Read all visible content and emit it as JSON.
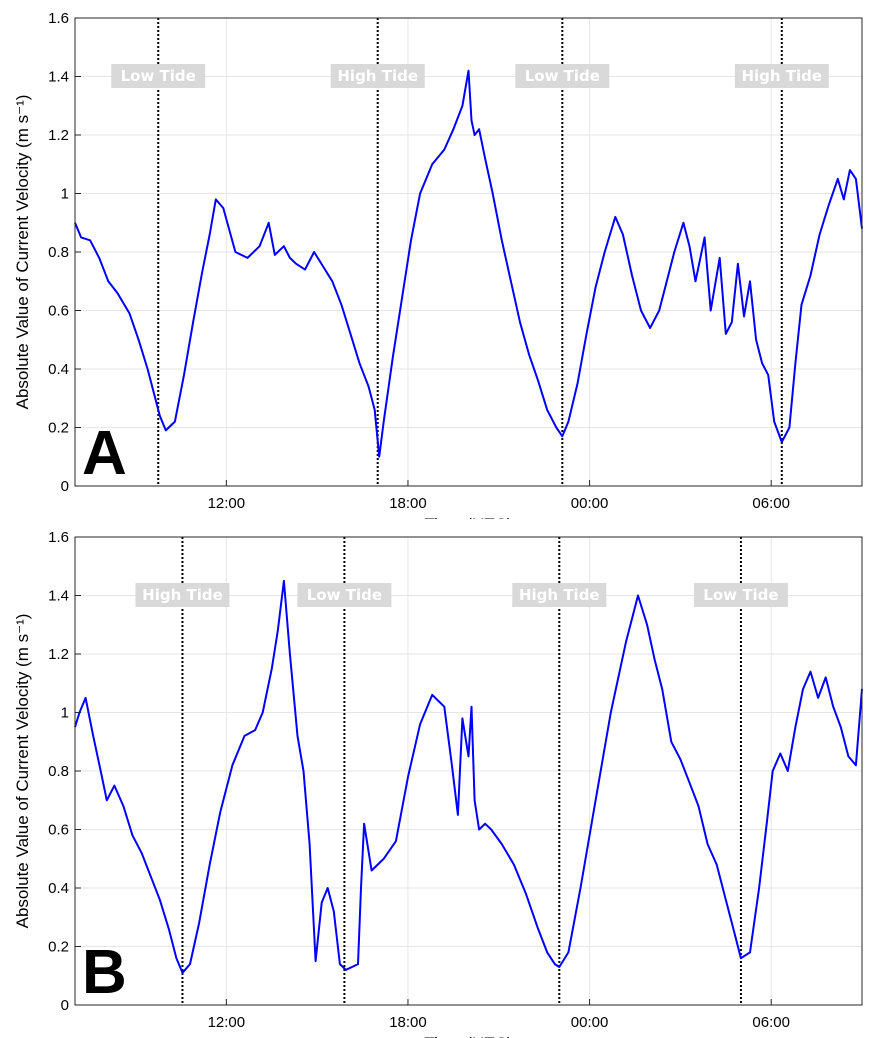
{
  "chart_data": [
    {
      "type": "line",
      "panel_letter": "A",
      "xlabel": "Time (UTC)",
      "ylabel": "Absolute Value of Current Velocity (m s⁻¹)",
      "xlim_hours": [
        7.0,
        33.0
      ],
      "ylim": [
        0,
        1.6
      ],
      "yticks": [
        0,
        0.2,
        0.4,
        0.6,
        0.8,
        1,
        1.2,
        1.4,
        1.6
      ],
      "ytick_labels": [
        "0",
        "0.2",
        "0.4",
        "0.6",
        "0.8",
        "1",
        "1.2",
        "1.4",
        "1.6"
      ],
      "xticks_hours": [
        12,
        18,
        24,
        30
      ],
      "xtick_labels": [
        "12:00",
        "18:00",
        "00:00",
        "06:00"
      ],
      "grid": true,
      "color": "#0000ff",
      "tide_markers": [
        {
          "time_hours": 9.75,
          "label": "Low Tide"
        },
        {
          "time_hours": 17.0,
          "label": "High Tide"
        },
        {
          "time_hours": 23.1,
          "label": "Low Tide"
        },
        {
          "time_hours": 30.35,
          "label": "High Tide"
        }
      ],
      "series": [
        {
          "x_hours": [
            7.0,
            7.2,
            7.5,
            7.8,
            8.1,
            8.4,
            8.8,
            9.1,
            9.4,
            9.6,
            9.8,
            10.0,
            10.3,
            10.6,
            10.9,
            11.2,
            11.45,
            11.65,
            11.9,
            12.3,
            12.7,
            13.1,
            13.4,
            13.6,
            13.9,
            14.1,
            14.3,
            14.6,
            14.9,
            15.2,
            15.5,
            15.8,
            16.1,
            16.4,
            16.7,
            16.9,
            17.05,
            17.2,
            17.5,
            17.8,
            18.1,
            18.4,
            18.8,
            19.2,
            19.5,
            19.8,
            20.0,
            20.1,
            20.2,
            20.35,
            20.55,
            20.8,
            21.1,
            21.4,
            21.7,
            22.0,
            22.3,
            22.6,
            22.9,
            23.1,
            23.3,
            23.6,
            23.9,
            24.2,
            24.5,
            24.85,
            25.1,
            25.4,
            25.7,
            26.0,
            26.3,
            26.6,
            26.8,
            27.1,
            27.3,
            27.5,
            27.8,
            28.0,
            28.3,
            28.5,
            28.7,
            28.9,
            29.1,
            29.3,
            29.5,
            29.7,
            29.9,
            30.1,
            30.35,
            30.6,
            30.8,
            31.0,
            31.3,
            31.6,
            31.9,
            32.2,
            32.4,
            32.6,
            32.8,
            33.0
          ],
          "y": [
            0.9,
            0.85,
            0.84,
            0.78,
            0.7,
            0.66,
            0.59,
            0.5,
            0.4,
            0.32,
            0.24,
            0.19,
            0.22,
            0.38,
            0.56,
            0.73,
            0.86,
            0.98,
            0.95,
            0.8,
            0.78,
            0.82,
            0.9,
            0.79,
            0.82,
            0.78,
            0.76,
            0.74,
            0.8,
            0.75,
            0.7,
            0.62,
            0.52,
            0.42,
            0.34,
            0.26,
            0.1,
            0.22,
            0.44,
            0.64,
            0.84,
            1.0,
            1.1,
            1.15,
            1.22,
            1.3,
            1.42,
            1.25,
            1.2,
            1.22,
            1.12,
            1.0,
            0.84,
            0.7,
            0.56,
            0.45,
            0.36,
            0.26,
            0.2,
            0.17,
            0.22,
            0.35,
            0.52,
            0.68,
            0.8,
            0.92,
            0.86,
            0.72,
            0.6,
            0.54,
            0.6,
            0.72,
            0.8,
            0.9,
            0.82,
            0.7,
            0.85,
            0.6,
            0.78,
            0.52,
            0.56,
            0.76,
            0.58,
            0.7,
            0.5,
            0.42,
            0.38,
            0.22,
            0.15,
            0.2,
            0.42,
            0.62,
            0.72,
            0.86,
            0.96,
            1.05,
            0.98,
            1.08,
            1.05,
            0.88
          ]
        }
      ]
    },
    {
      "type": "line",
      "panel_letter": "B",
      "xlabel": "Time (UTC)",
      "ylabel": "Absolute Value of Current Velocity (m s⁻¹)",
      "xlim_hours": [
        7.0,
        33.0
      ],
      "ylim": [
        0,
        1.6
      ],
      "yticks": [
        0,
        0.2,
        0.4,
        0.6,
        0.8,
        1,
        1.2,
        1.4,
        1.6
      ],
      "ytick_labels": [
        "0",
        "0.2",
        "0.4",
        "0.6",
        "0.8",
        "1",
        "1.2",
        "1.4",
        "1.6"
      ],
      "xticks_hours": [
        12,
        18,
        24,
        30
      ],
      "xtick_labels": [
        "12:00",
        "18:00",
        "00:00",
        "06:00"
      ],
      "grid": true,
      "color": "#0000ff",
      "tide_markers": [
        {
          "time_hours": 10.55,
          "label": "High Tide"
        },
        {
          "time_hours": 15.9,
          "label": "Low Tide"
        },
        {
          "time_hours": 23.0,
          "label": "High Tide"
        },
        {
          "time_hours": 29.0,
          "label": "Low Tide"
        }
      ],
      "series": [
        {
          "x_hours": [
            7.0,
            7.15,
            7.35,
            7.6,
            7.85,
            8.05,
            8.3,
            8.6,
            8.9,
            9.2,
            9.5,
            9.8,
            10.1,
            10.35,
            10.55,
            10.8,
            11.1,
            11.45,
            11.8,
            12.2,
            12.6,
            12.95,
            13.2,
            13.5,
            13.7,
            13.9,
            14.1,
            14.35,
            14.55,
            14.75,
            14.95,
            15.15,
            15.35,
            15.55,
            15.75,
            15.95,
            16.15,
            16.35,
            16.45,
            16.55,
            16.8,
            17.2,
            17.6,
            18.0,
            18.4,
            18.8,
            19.2,
            19.45,
            19.65,
            19.8,
            20.0,
            20.1,
            20.2,
            20.35,
            20.55,
            20.75,
            21.1,
            21.5,
            21.9,
            22.3,
            22.6,
            22.85,
            23.0,
            23.3,
            23.7,
            24.2,
            24.7,
            25.2,
            25.6,
            25.9,
            26.15,
            26.4,
            26.7,
            27.0,
            27.3,
            27.6,
            27.9,
            28.2,
            28.5,
            28.8,
            29.0,
            29.3,
            29.6,
            29.85,
            30.05,
            30.3,
            30.55,
            30.8,
            31.05,
            31.3,
            31.55,
            31.8,
            32.05,
            32.3,
            32.55,
            32.8,
            33.0
          ],
          "y": [
            0.95,
            1.0,
            1.05,
            0.92,
            0.8,
            0.7,
            0.75,
            0.68,
            0.58,
            0.52,
            0.44,
            0.36,
            0.26,
            0.16,
            0.11,
            0.14,
            0.28,
            0.48,
            0.66,
            0.82,
            0.92,
            0.94,
            1.0,
            1.15,
            1.28,
            1.45,
            1.2,
            0.92,
            0.8,
            0.55,
            0.15,
            0.35,
            0.4,
            0.32,
            0.14,
            0.12,
            0.13,
            0.14,
            0.4,
            0.62,
            0.46,
            0.5,
            0.56,
            0.78,
            0.96,
            1.06,
            1.02,
            0.82,
            0.65,
            0.98,
            0.85,
            1.02,
            0.7,
            0.6,
            0.62,
            0.6,
            0.55,
            0.48,
            0.38,
            0.26,
            0.18,
            0.14,
            0.13,
            0.18,
            0.4,
            0.7,
            1.0,
            1.24,
            1.4,
            1.3,
            1.18,
            1.08,
            0.9,
            0.84,
            0.76,
            0.68,
            0.55,
            0.48,
            0.36,
            0.24,
            0.16,
            0.18,
            0.4,
            0.62,
            0.8,
            0.86,
            0.8,
            0.95,
            1.08,
            1.14,
            1.05,
            1.12,
            1.02,
            0.95,
            0.85,
            0.82,
            1.08
          ]
        }
      ]
    }
  ]
}
